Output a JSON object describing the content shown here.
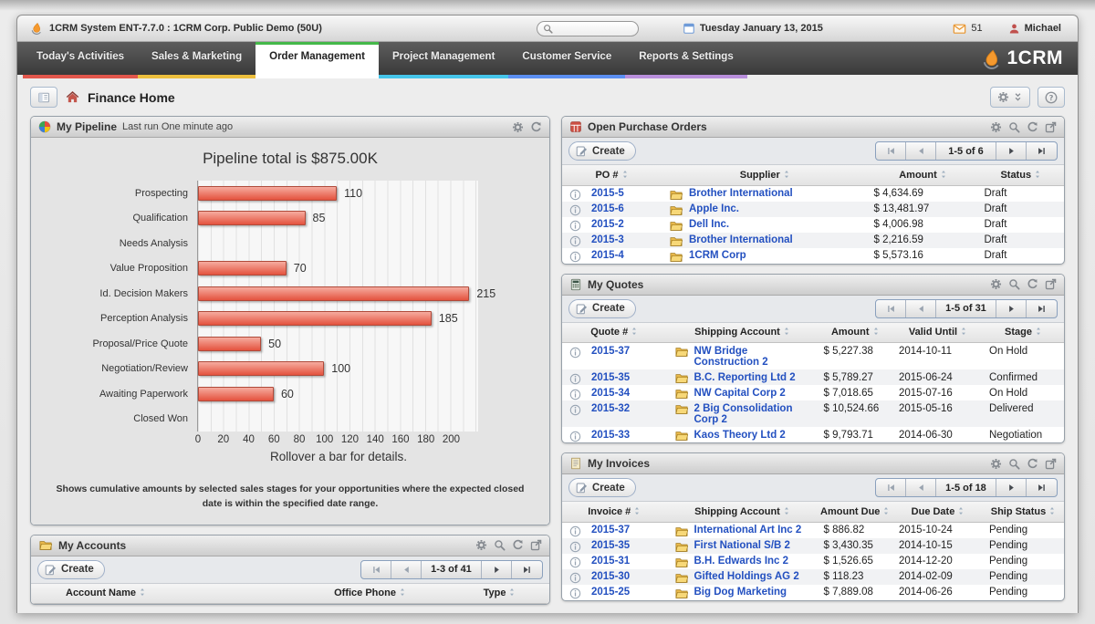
{
  "window_title": "1CRM System ENT-7.7.0 : 1CRM Corp. Public Demo (50U)",
  "topbar": {
    "search_placeholder": "",
    "date": "Tuesday January 13, 2015",
    "mail_count": "51",
    "user": "Michael"
  },
  "nav": {
    "brand": "1CRM",
    "tabs": [
      {
        "label": "Today's Activities",
        "underline": "#e2574c",
        "active": false
      },
      {
        "label": "Sales & Marketing",
        "underline": "#edbf3d",
        "active": false
      },
      {
        "label": "Order Management",
        "underline": "#44b849",
        "active": true
      },
      {
        "label": "Project Management",
        "underline": "#45c5ea",
        "active": false
      },
      {
        "label": "Customer Service",
        "underline": "#5b8ff2",
        "active": false
      },
      {
        "label": "Reports & Settings",
        "underline": "#b98fdc",
        "active": false
      }
    ]
  },
  "page": {
    "title": "Finance Home"
  },
  "pipeline": {
    "title": "My Pipeline",
    "subtitle": "Last run One minute ago",
    "footnote": "Shows cumulative amounts by selected sales stages for your opportunities where the expected closed date is within the specified date range."
  },
  "chart_data": {
    "type": "bar",
    "orientation": "horizontal",
    "title": "Pipeline total is $875.00K",
    "caption": "Rollover a bar for details.",
    "categories": [
      "Prospecting",
      "Qualification",
      "Needs Analysis",
      "Value Proposition",
      "Id. Decision Makers",
      "Perception Analysis",
      "Proposal/Price Quote",
      "Negotiation/Review",
      "Awaiting Paperwork",
      "Closed Won"
    ],
    "values": [
      110,
      85,
      0,
      70,
      215,
      185,
      50,
      100,
      60,
      0
    ],
    "unit": "$K",
    "xlim": [
      0,
      220
    ],
    "ticks": [
      0,
      20,
      40,
      60,
      80,
      100,
      120,
      140,
      160,
      180,
      200
    ],
    "bar_color": "#e4523e",
    "grid": true
  },
  "accounts": {
    "title": "My Accounts",
    "create": "Create",
    "pagination": "1-3 of 41",
    "columns": [
      "Account Name",
      "Office Phone",
      "Type"
    ],
    "rows": []
  },
  "purchase_orders": {
    "title": "Open Purchase Orders",
    "create": "Create",
    "pagination": "1-5 of 6",
    "columns": [
      "PO #",
      "Supplier",
      "Amount",
      "Status"
    ],
    "rows": [
      {
        "num": "2015-5",
        "supplier": "Brother International",
        "amount": "$ 4,634.69",
        "status": "Draft"
      },
      {
        "num": "2015-6",
        "supplier": "Apple Inc.",
        "amount": "$ 13,481.97",
        "status": "Draft"
      },
      {
        "num": "2015-2",
        "supplier": "Dell Inc.",
        "amount": "$ 4,006.98",
        "status": "Draft"
      },
      {
        "num": "2015-3",
        "supplier": "Brother International",
        "amount": "$ 2,216.59",
        "status": "Draft"
      },
      {
        "num": "2015-4",
        "supplier": "1CRM Corp",
        "amount": "$ 5,573.16",
        "status": "Draft"
      }
    ]
  },
  "quotes": {
    "title": "My Quotes",
    "create": "Create",
    "pagination": "1-5 of 31",
    "columns": [
      "Quote #",
      "Shipping Account",
      "Amount",
      "Valid Until",
      "Stage"
    ],
    "rows": [
      {
        "num": "2015-37",
        "account": "NW Bridge Construction 2",
        "amount": "$ 5,227.38",
        "date": "2014-10-11",
        "stage": "On Hold"
      },
      {
        "num": "2015-35",
        "account": "B.C. Reporting Ltd 2",
        "amount": "$ 5,789.27",
        "date": "2015-06-24",
        "stage": "Confirmed"
      },
      {
        "num": "2015-34",
        "account": "NW Capital Corp 2",
        "amount": "$ 7,018.65",
        "date": "2015-07-16",
        "stage": "On Hold"
      },
      {
        "num": "2015-32",
        "account": "2 Big Consolidation Corp 2",
        "amount": "$ 10,524.66",
        "date": "2015-05-16",
        "stage": "Delivered"
      },
      {
        "num": "2015-33",
        "account": "Kaos Theory Ltd 2",
        "amount": "$ 9,793.71",
        "date": "2014-06-30",
        "stage": "Negotiation"
      }
    ]
  },
  "invoices": {
    "title": "My Invoices",
    "create": "Create",
    "pagination": "1-5 of 18",
    "columns": [
      "Invoice #",
      "Shipping Account",
      "Amount Due",
      "Due Date",
      "Ship Status"
    ],
    "rows": [
      {
        "num": "2015-37",
        "account": "International Art Inc 2",
        "amount": "$ 886.82",
        "date": "2015-10-24",
        "stage": "Pending"
      },
      {
        "num": "2015-35",
        "account": "First National S/B 2",
        "amount": "$ 3,430.35",
        "date": "2014-10-15",
        "stage": "Pending"
      },
      {
        "num": "2015-31",
        "account": "B.H. Edwards Inc 2",
        "amount": "$ 1,526.65",
        "date": "2014-12-20",
        "stage": "Pending"
      },
      {
        "num": "2015-30",
        "account": "Gifted Holdings AG 2",
        "amount": "$ 118.23",
        "date": "2014-02-09",
        "stage": "Pending"
      },
      {
        "num": "2015-25",
        "account": "Big Dog Marketing",
        "amount": "$ 7,889.08",
        "date": "2014-06-26",
        "stage": "Pending"
      }
    ]
  }
}
